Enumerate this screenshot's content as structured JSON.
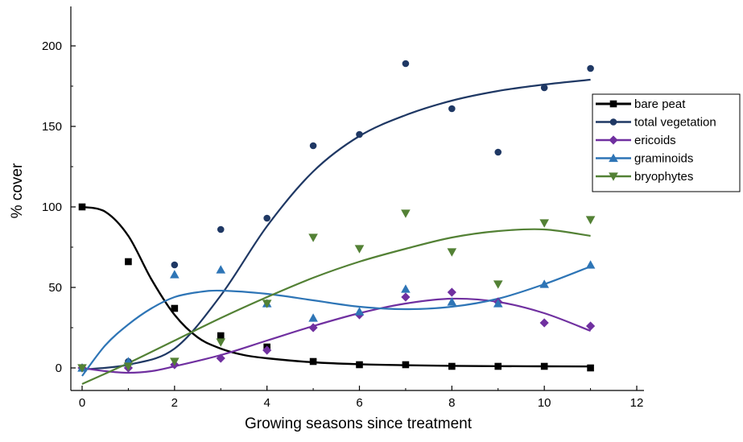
{
  "chart_data": {
    "type": "scatter",
    "xlabel": "Growing seasons since treatment",
    "ylabel": "% cover",
    "xlim": [
      0,
      12
    ],
    "ylim": [
      0,
      200
    ],
    "x_ticks": [
      "0",
      "2",
      "4",
      "6",
      "8",
      "10",
      "12"
    ],
    "y_ticks": [
      "0",
      "50",
      "100",
      "150",
      "200"
    ],
    "legend_position": "right",
    "grid": false,
    "series": [
      {
        "name": "bare peat",
        "color": "#000000",
        "marker": "square",
        "x": [
          0,
          1,
          2,
          3,
          4,
          5,
          6,
          7,
          8,
          9,
          10,
          11
        ],
        "y": [
          100,
          66,
          37,
          20,
          13,
          4,
          2,
          2,
          1,
          1,
          1,
          0
        ],
        "fit": [
          [
            0,
            100
          ],
          [
            0.5,
            97
          ],
          [
            1,
            82
          ],
          [
            1.5,
            55
          ],
          [
            2,
            33
          ],
          [
            2.5,
            19
          ],
          [
            3,
            12
          ],
          [
            3.5,
            8
          ],
          [
            4,
            6
          ],
          [
            5,
            3.5
          ],
          [
            6,
            2.3
          ],
          [
            7,
            1.7
          ],
          [
            8,
            1.3
          ],
          [
            9,
            1.1
          ],
          [
            10,
            1
          ],
          [
            11,
            0.9
          ]
        ]
      },
      {
        "name": "total vegetation",
        "color": "#1f3864",
        "marker": "circle",
        "x": [
          0,
          1,
          2,
          3,
          4,
          5,
          6,
          7,
          8,
          9,
          10,
          11
        ],
        "y": [
          0,
          4,
          64,
          86,
          93,
          138,
          145,
          189,
          161,
          134,
          174,
          186
        ],
        "fit": [
          [
            0,
            -1
          ],
          [
            1,
            2
          ],
          [
            2,
            12
          ],
          [
            3,
            45
          ],
          [
            4,
            88
          ],
          [
            5,
            122
          ],
          [
            6,
            144
          ],
          [
            7,
            157
          ],
          [
            8,
            166
          ],
          [
            9,
            172
          ],
          [
            10,
            176
          ],
          [
            11,
            179
          ]
        ]
      },
      {
        "name": "ericoids",
        "color": "#7030a0",
        "marker": "diamond",
        "x": [
          0,
          1,
          2,
          3,
          4,
          5,
          6,
          7,
          8,
          9,
          10,
          11
        ],
        "y": [
          0,
          0,
          2,
          6,
          11,
          25,
          33,
          44,
          47,
          41,
          28,
          26
        ],
        "fit": [
          [
            0,
            0
          ],
          [
            0.5,
            -2
          ],
          [
            1,
            -3
          ],
          [
            1.5,
            -2
          ],
          [
            2,
            1
          ],
          [
            3,
            8
          ],
          [
            4,
            17
          ],
          [
            5,
            26
          ],
          [
            6,
            34
          ],
          [
            7,
            40
          ],
          [
            8,
            43
          ],
          [
            9,
            41
          ],
          [
            10,
            34
          ],
          [
            11,
            23
          ]
        ]
      },
      {
        "name": "graminoids",
        "color": "#2e75b6",
        "marker": "triangle-up",
        "x": [
          0,
          1,
          2,
          3,
          4,
          5,
          6,
          7,
          8,
          9,
          10,
          11
        ],
        "y": [
          0,
          4,
          58,
          61,
          40,
          31,
          35,
          49,
          41,
          40,
          52,
          64
        ],
        "fit": [
          [
            0,
            -5
          ],
          [
            0.5,
            14
          ],
          [
            1,
            27
          ],
          [
            1.5,
            37
          ],
          [
            2,
            44
          ],
          [
            2.5,
            47
          ],
          [
            3,
            48
          ],
          [
            4,
            46
          ],
          [
            5,
            42
          ],
          [
            6,
            38
          ],
          [
            7,
            36.5
          ],
          [
            8,
            38
          ],
          [
            9,
            43
          ],
          [
            10,
            52
          ],
          [
            11,
            63
          ]
        ]
      },
      {
        "name": "bryophytes",
        "color": "#538135",
        "marker": "triangle-down",
        "x": [
          0,
          1,
          2,
          3,
          4,
          5,
          6,
          7,
          8,
          9,
          10,
          11
        ],
        "y": [
          0,
          1,
          4,
          16,
          40,
          81,
          74,
          96,
          72,
          52,
          90,
          92
        ],
        "fit": [
          [
            0,
            -10
          ],
          [
            1,
            3
          ],
          [
            2,
            17
          ],
          [
            3,
            31
          ],
          [
            4,
            44
          ],
          [
            5,
            56
          ],
          [
            6,
            66
          ],
          [
            7,
            74
          ],
          [
            8,
            81
          ],
          [
            9,
            85
          ],
          [
            10,
            86
          ],
          [
            11,
            82
          ]
        ]
      }
    ]
  }
}
